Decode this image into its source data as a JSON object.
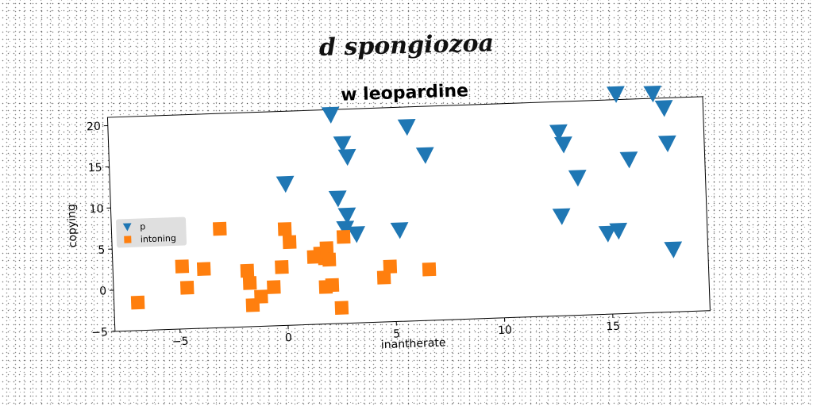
{
  "suptitle": "d spongiozoa",
  "chart_data": {
    "type": "scatter",
    "title": "w leopardine",
    "xlabel": "inantherate",
    "ylabel": "copying",
    "xlim": [
      -8,
      19.5
    ],
    "ylim": [
      -5,
      21
    ],
    "xticks": [
      -5,
      0,
      5,
      10,
      15
    ],
    "yticks": [
      -5,
      0,
      5,
      10,
      15,
      20
    ],
    "grid": false,
    "legend_position": "center-left",
    "series": [
      {
        "name": "p",
        "marker": "triangle-down",
        "color": "#1f77b4",
        "points": [
          [
            2.3,
            20.4
          ],
          [
            5.8,
            18.6
          ],
          [
            2.8,
            16.8
          ],
          [
            3.0,
            15.2
          ],
          [
            6.6,
            15.1
          ],
          [
            0.1,
            12.2
          ],
          [
            2.5,
            10.2
          ],
          [
            2.9,
            8.1
          ],
          [
            2.8,
            6.5
          ],
          [
            3.3,
            5.8
          ],
          [
            5.3,
            6.1
          ],
          [
            12.8,
            17.3
          ],
          [
            13.0,
            15.8
          ],
          [
            13.6,
            11.7
          ],
          [
            12.8,
            7.1
          ],
          [
            15.5,
            21.7
          ],
          [
            17.2,
            21.6
          ],
          [
            17.7,
            19.8
          ],
          [
            17.8,
            15.5
          ],
          [
            16.0,
            13.7
          ],
          [
            14.9,
            4.8
          ],
          [
            15.4,
            5.1
          ],
          [
            17.9,
            2.6
          ]
        ]
      },
      {
        "name": "intoning",
        "marker": "square",
        "color": "#ff7f0e",
        "points": [
          [
            -6.9,
            -1.6
          ],
          [
            -4.8,
            2.6
          ],
          [
            -4.6,
            0.0
          ],
          [
            -3.8,
            2.2
          ],
          [
            -3.0,
            7.0
          ],
          [
            -1.8,
            1.8
          ],
          [
            -1.7,
            0.3
          ],
          [
            -1.6,
            -2.4
          ],
          [
            -1.2,
            -1.4
          ],
          [
            -0.6,
            -0.3
          ],
          [
            -0.2,
            2.1
          ],
          [
            0.0,
            6.7
          ],
          [
            0.2,
            5.1
          ],
          [
            1.3,
            3.2
          ],
          [
            1.6,
            3.6
          ],
          [
            1.8,
            3.0
          ],
          [
            1.9,
            4.2
          ],
          [
            2.0,
            2.8
          ],
          [
            1.8,
            -0.5
          ],
          [
            2.1,
            -0.3
          ],
          [
            2.5,
            -3.1
          ],
          [
            2.7,
            5.5
          ],
          [
            4.5,
            0.4
          ],
          [
            4.8,
            1.7
          ],
          [
            6.6,
            1.2
          ]
        ]
      }
    ]
  }
}
